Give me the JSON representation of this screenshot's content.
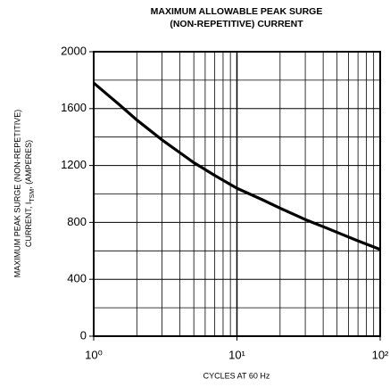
{
  "chart_data": {
    "type": "line",
    "title": [
      "MAXIMUM ALLOWABLE PEAK SURGE",
      "(NON-REPETITIVE) CURRENT"
    ],
    "xlabel": "CYCLES AT 60 Hz",
    "ylabel": {
      "line1": "MAXIMUM PEAK SURGE (NON-REPETITIVE)",
      "line2": {
        "text": "CURRENT, I",
        "sub": "TSM",
        "tail": ", (AMPERES)"
      }
    },
    "x": [
      1,
      1.5,
      2,
      3,
      4,
      5,
      7,
      10,
      15,
      20,
      30,
      40,
      50,
      70,
      100
    ],
    "series": [
      {
        "name": "I_TSM",
        "color": "#000000",
        "values": [
          1780,
          1630,
          1520,
          1380,
          1290,
          1220,
          1130,
          1040,
          960,
          900,
          820,
          770,
          730,
          670,
          610
        ]
      }
    ],
    "xscale": "log",
    "xlim": [
      1,
      100
    ],
    "xticks": [
      {
        "value": 1,
        "label": "10⁰"
      },
      {
        "value": 10,
        "label": "10¹"
      },
      {
        "value": 100,
        "label": "10²"
      }
    ],
    "ylim": [
      0,
      2000
    ],
    "yticks": [
      0,
      400,
      800,
      1200,
      1600,
      2000
    ],
    "yminorticks": [
      200,
      600,
      1000,
      1400,
      1800
    ],
    "grid": true
  }
}
